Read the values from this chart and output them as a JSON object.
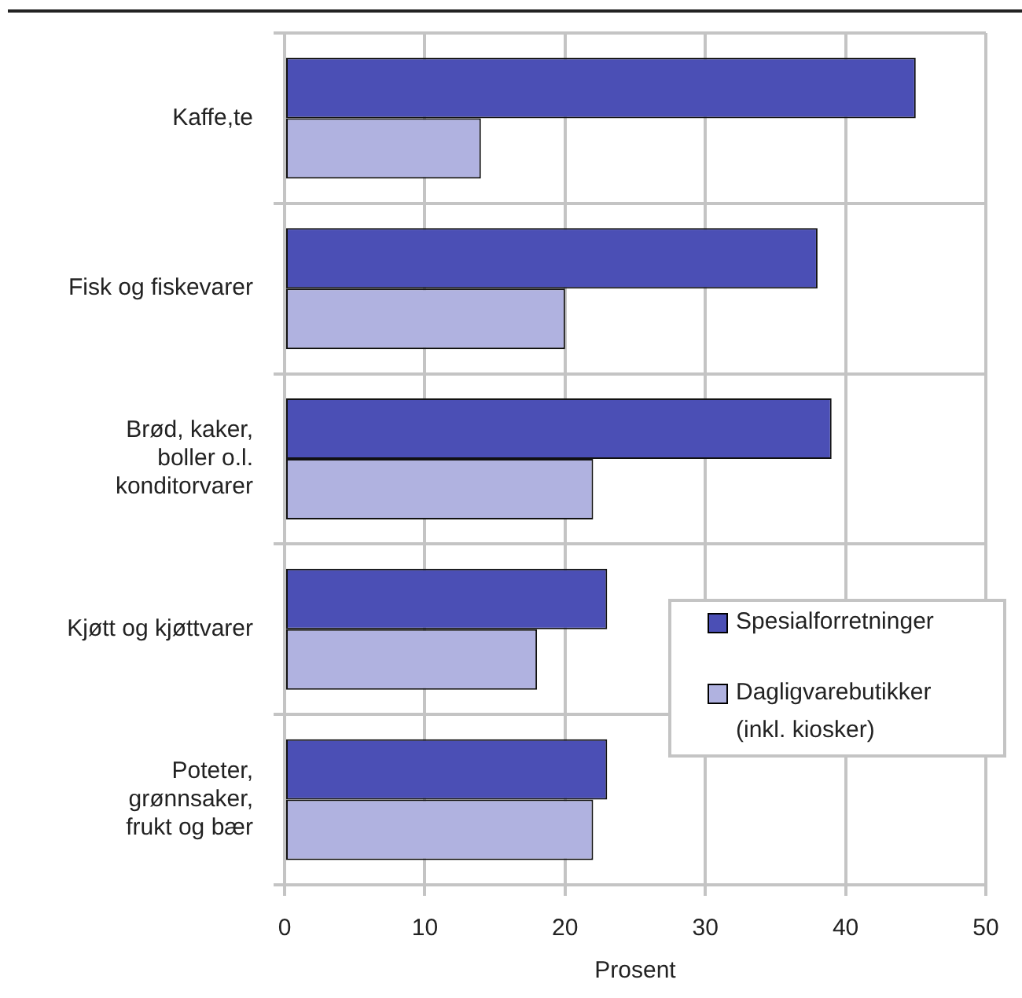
{
  "chart_data": {
    "type": "bar",
    "orientation": "horizontal",
    "xlabel": "Prosent",
    "categories": [
      "Kaffe,te",
      "Fisk og fiskevarer",
      "Brød, kaker, boller o.l. konditorvarer",
      "Kjøtt og kjøttvarer",
      "Poteter, grønnsaker, frukt og bær"
    ],
    "series": [
      {
        "name": "Spesialforretninger",
        "color": "#4b4fb5",
        "values": [
          45,
          38,
          39,
          23,
          23
        ]
      },
      {
        "name": "Dagligvarebutikker (inkl. kiosker)",
        "color": "#b0b2e0",
        "values": [
          14,
          20,
          22,
          18,
          22
        ]
      }
    ],
    "xlim": [
      0,
      50
    ],
    "xticks": [
      0,
      10,
      20,
      30,
      40,
      50
    ],
    "grid": true,
    "legend": "bottom right"
  }
}
